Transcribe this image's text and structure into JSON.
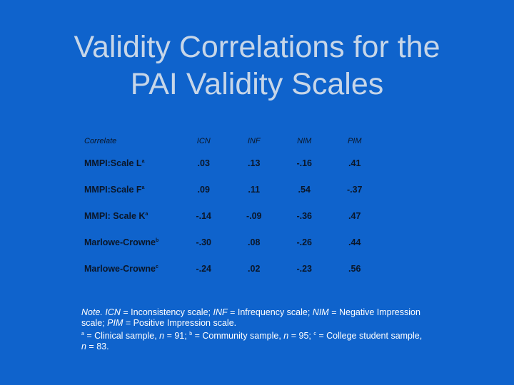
{
  "title": {
    "line1": "Validity Correlations for the",
    "line2": "PAI Validity Scales"
  },
  "table": {
    "headers": [
      "Correlate",
      "ICN",
      "INF",
      "NIM",
      "PIM"
    ],
    "rows": [
      {
        "label": "MMPI:Scale L",
        "sup": "a",
        "values": [
          ".03",
          ".13",
          "-.16",
          ".41"
        ]
      },
      {
        "label": "MMPI:Scale F",
        "sup": "a",
        "values": [
          ".09",
          ".11",
          ".54",
          "-.37"
        ]
      },
      {
        "label": "MMPI: Scale K",
        "sup": "a",
        "values": [
          "-.14",
          "-.09",
          "-.36",
          ".47"
        ]
      },
      {
        "label": "Marlowe-Crowne",
        "sup": "b",
        "values": [
          "-.30",
          ".08",
          "-.26",
          ".44"
        ]
      },
      {
        "label": "Marlowe-Crowne",
        "sup": "c",
        "values": [
          "-.24",
          ".02",
          "-.23",
          ".56"
        ]
      }
    ]
  },
  "note": {
    "note_label": "Note.",
    "icn_abbr": "ICN",
    "icn_def": " = Inconsistency scale; ",
    "inf_abbr": "INF",
    "inf_def": " = Infrequency scale; ",
    "nim_abbr": "NIM",
    "nim_def": " = Negative Impression scale; ",
    "pim_abbr": "PIM",
    "pim_def": " = Positive Impression scale.",
    "sup_a": "a",
    "a_text": " = Clinical sample, ",
    "n_label": "n",
    "a_n": " = 91; ",
    "sup_b": "b",
    "b_text": " = Community sample, ",
    "b_n": " = 95; ",
    "sup_c": "c",
    "c_text": " = College student sample, ",
    "c_n": " = 83."
  }
}
